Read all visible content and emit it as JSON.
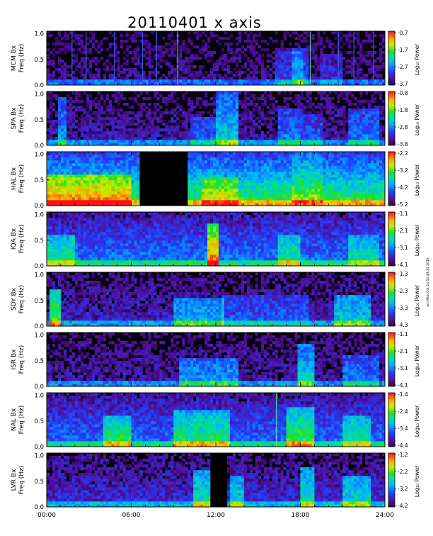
{
  "chart_data": {
    "type": "heatmap",
    "title": "20110401  x axis",
    "stamp": "wcl Mon Oct 14 10:49:35 2019",
    "x_ticks": [
      "00:00",
      "06:00",
      "12:00",
      "18:00",
      "24:00"
    ],
    "xlim_hours": [
      0,
      24
    ],
    "y_ticks": [
      "0.0",
      "0.5",
      "1.0"
    ],
    "ylim_hz": [
      0,
      1.05
    ],
    "ylabel_freq": "Freq (Hz)",
    "colorbar_label": "Log₁₀ Power",
    "panels": [
      {
        "station": "MCM Bx",
        "cb_ticks": [
          "-0.7",
          "-1.7",
          "-2.7",
          "-3.7"
        ],
        "base": 0.08,
        "lines": [
          [
            1.8,
            "#3a56e8"
          ],
          [
            2.8,
            "#3a56e8"
          ],
          [
            4.8,
            "#3a56e8"
          ],
          [
            6.8,
            "#3a56e8"
          ],
          [
            7.8,
            "#3a56e8"
          ],
          [
            9.3,
            "#52d8a8"
          ],
          [
            18.7,
            "#52d8a8"
          ],
          [
            20.7,
            "#3a56e8"
          ],
          [
            21.8,
            "#3a56e8"
          ],
          [
            23.2,
            "#3a56e8"
          ]
        ],
        "bursts": [
          [
            16.3,
            18.2,
            0.15,
            0.65
          ],
          [
            17.5,
            18.6,
            0.2,
            0.7
          ],
          [
            19.5,
            21.0,
            0.12,
            0.6
          ]
        ],
        "gaps": []
      },
      {
        "station": "SPA Bx",
        "cb_ticks": [
          "-0.8",
          "-1.8",
          "-2.8",
          "-3.8"
        ],
        "base": 0.12,
        "lines": [],
        "bursts": [
          [
            0.8,
            1.3,
            0.25,
            0.9
          ],
          [
            10.2,
            12.0,
            0.15,
            0.5
          ],
          [
            12.0,
            13.6,
            0.35,
            1.0
          ],
          [
            16.5,
            18.0,
            0.2,
            0.7
          ],
          [
            18.0,
            19.5,
            0.15,
            0.6
          ],
          [
            21.5,
            23.5,
            0.2,
            0.7
          ]
        ],
        "gaps": []
      },
      {
        "station": "HAL Bx",
        "cb_ticks": [
          "-2.2",
          "-3.2",
          "-4.2",
          "-5.2"
        ],
        "base": 0.55,
        "lines": [],
        "bursts": [
          [
            0,
            6,
            0.3,
            0.6
          ],
          [
            11.0,
            13.5,
            0.2,
            0.5
          ],
          [
            17.5,
            19.5,
            0.12,
            1.0
          ]
        ],
        "gaps": [
          [
            6.6,
            10.0
          ]
        ]
      },
      {
        "station": "IQA Bx",
        "cb_ticks": [
          "-1.1",
          "-2.1",
          "-3.1",
          "-4.1"
        ],
        "base": 0.3,
        "lines": [],
        "bursts": [
          [
            0,
            2,
            0.25,
            0.6
          ],
          [
            11.5,
            12.2,
            0.6,
            0.8
          ],
          [
            16.5,
            18.0,
            0.25,
            0.6
          ],
          [
            21.5,
            23.5,
            0.2,
            0.6
          ]
        ],
        "gaps": []
      },
      {
        "station": "SDY Bx",
        "cb_ticks": [
          "-1.3",
          "-2.3",
          "-3.3",
          "-4.3"
        ],
        "base": 0.15,
        "lines": [],
        "bursts": [
          [
            0.2,
            1.0,
            0.5,
            0.7
          ],
          [
            9.0,
            12.5,
            0.25,
            0.55
          ],
          [
            12.5,
            18.5,
            0.12,
            0.6
          ],
          [
            20.5,
            23.0,
            0.3,
            0.6
          ]
        ],
        "gaps": []
      },
      {
        "station": "ISR Bx",
        "cb_ticks": [
          "-1.1",
          "-2.1",
          "-3.1",
          "-4.1"
        ],
        "base": 0.12,
        "lines": [],
        "bursts": [
          [
            9.5,
            13.5,
            0.25,
            0.55
          ],
          [
            17.8,
            19.0,
            0.35,
            0.8
          ],
          [
            21.0,
            23.5,
            0.2,
            0.6
          ]
        ],
        "gaps": []
      },
      {
        "station": "NAL Bx",
        "cb_ticks": [
          "-1.4",
          "-2.4",
          "-3.4",
          "-4.4"
        ],
        "base": 0.28,
        "lines": [
          [
            16.3,
            "#52d8a8"
          ]
        ],
        "bursts": [
          [
            4.0,
            6.0,
            0.3,
            0.6
          ],
          [
            9.0,
            13.0,
            0.3,
            0.7
          ],
          [
            17.0,
            19.0,
            0.35,
            0.75
          ],
          [
            21.0,
            23.0,
            0.25,
            0.6
          ]
        ],
        "gaps": []
      },
      {
        "station": "LVR Bx",
        "cb_ticks": [
          "-1.2",
          "-2.2",
          "-3.2",
          "-4.2"
        ],
        "base": 0.18,
        "lines": [],
        "bursts": [
          [
            10.5,
            11.5,
            0.35,
            0.7
          ],
          [
            13.0,
            14.0,
            0.3,
            0.6
          ],
          [
            18.0,
            19.0,
            0.35,
            0.75
          ],
          [
            21.0,
            23.0,
            0.3,
            0.6
          ]
        ],
        "gaps": [
          [
            11.7,
            12.8
          ]
        ]
      }
    ]
  }
}
